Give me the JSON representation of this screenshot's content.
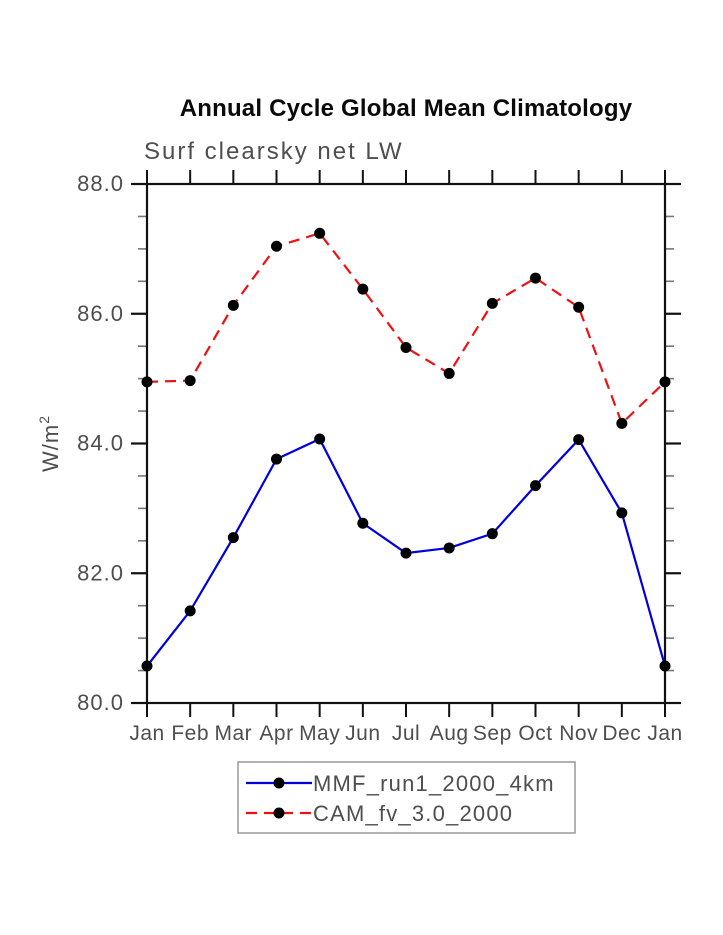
{
  "chart_data": {
    "type": "line",
    "title": "Annual Cycle Global Mean Climatology",
    "subtitle": "Surf clearsky net LW",
    "ylabel": "W/m²",
    "xlabel": "",
    "x_categories": [
      "Jan",
      "Feb",
      "Mar",
      "Apr",
      "May",
      "Jun",
      "Jul",
      "Aug",
      "Sep",
      "Oct",
      "Nov",
      "Dec",
      "Jan"
    ],
    "ylim": [
      80.0,
      88.0
    ],
    "ytick_labels": [
      "80.0",
      "82.0",
      "84.0",
      "86.0",
      "88.0"
    ],
    "ytick_major_step": 2.0,
    "ytick_minor_step": 0.5,
    "grid": false,
    "legend_position": "bottom-center",
    "series": [
      {
        "name": "MMF_run1_2000_4km",
        "color": "#0000dd",
        "line_style": "solid",
        "marker": "filled-circle",
        "marker_color": "#000000",
        "values": [
          80.57,
          81.42,
          82.55,
          83.76,
          84.07,
          82.77,
          82.31,
          82.39,
          82.61,
          83.35,
          84.06,
          82.93,
          80.57
        ]
      },
      {
        "name": "CAM_fv_3.0_2000",
        "color": "#ee1111",
        "line_style": "dashed",
        "marker": "filled-circle",
        "marker_color": "#000000",
        "values": [
          84.95,
          84.97,
          86.13,
          87.04,
          87.24,
          86.38,
          85.48,
          85.08,
          86.16,
          86.55,
          86.1,
          84.31,
          84.95
        ]
      }
    ],
    "colors": {
      "frame": "#111111",
      "major_tick": "#111111",
      "minor_tick": "#777777",
      "axis_text": "#4e4e4e",
      "legend_border": "#999999"
    }
  }
}
